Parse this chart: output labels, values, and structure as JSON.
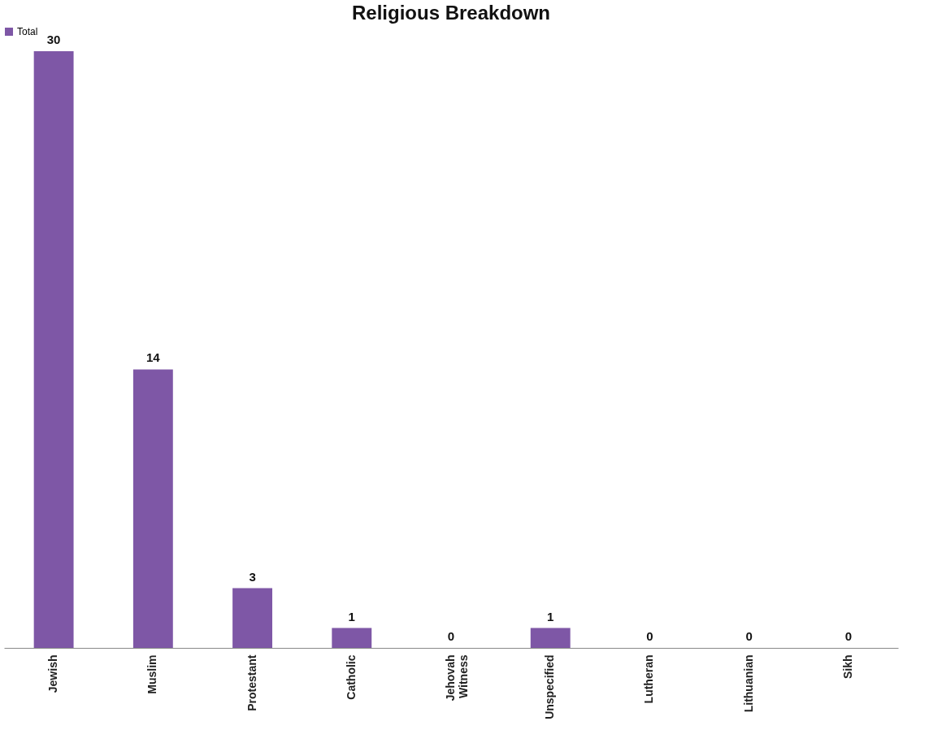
{
  "chart_data": {
    "type": "bar",
    "title": "Religious Breakdown",
    "categories": [
      "Jewish",
      "Muslim",
      "Protestant",
      "Catholic",
      "Jehovah Witness",
      "Unspecified",
      "Lutheran",
      "Lithuanian",
      "Sikh"
    ],
    "series": [
      {
        "name": "Total",
        "color": "#7e57a6",
        "values": [
          30,
          14,
          3,
          1,
          0,
          1,
          0,
          0,
          0
        ]
      }
    ],
    "data_labels": true,
    "legend": "top",
    "grid": false,
    "tick_labels": "x"
  }
}
